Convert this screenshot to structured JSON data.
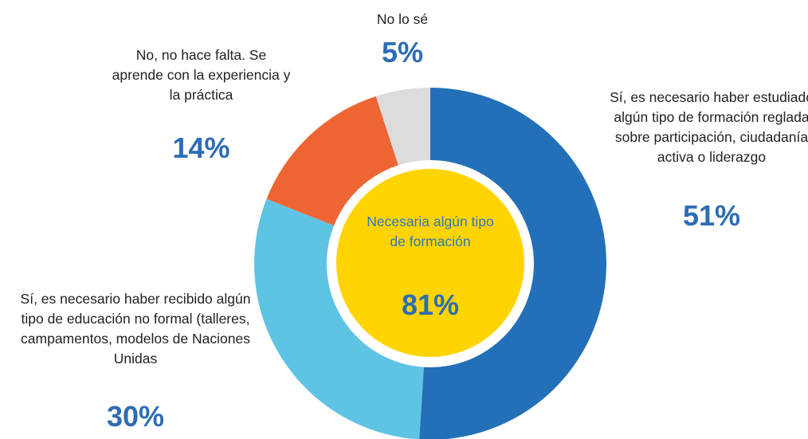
{
  "chart_data": {
    "type": "donut",
    "categories": [
      "Sí, es necesario haber estudiado algún tipo de formación reglada sobre participación, ciudadanía activa o liderazgo",
      "Sí, es necesario haber recibido algún tipo de educación no formal (talleres, campamentos, modelos de Naciones Unidas",
      "No, no hace falta. Se aprende con la experiencia y la práctica",
      "No lo sé"
    ],
    "values": [
      51,
      30,
      14,
      5
    ],
    "value_labels": [
      "51%",
      "30%",
      "14%",
      "5%"
    ],
    "colors": [
      "#2370b8",
      "#5fc4e4",
      "#ee6533",
      "#dcdcdc"
    ],
    "center": {
      "text": "Necesaria algún tipo de formación",
      "value_label": "81%",
      "color": "#ffd400"
    }
  }
}
